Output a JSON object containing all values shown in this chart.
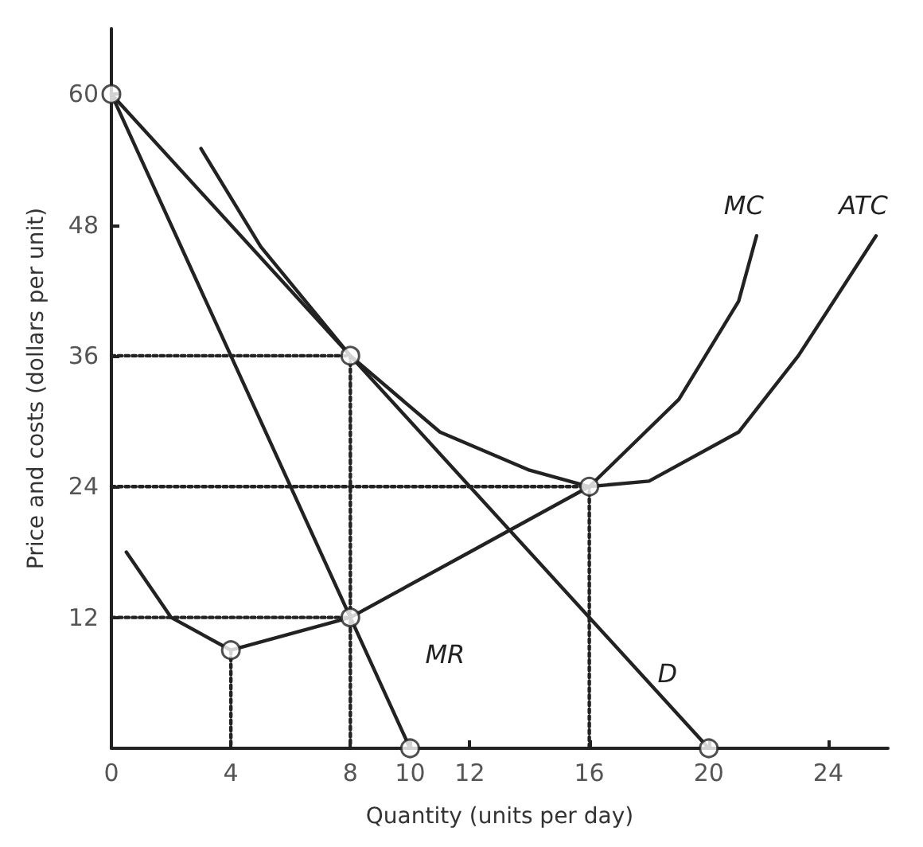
{
  "chart_data": {
    "type": "line",
    "xlabel": "Quantity (units per day)",
    "ylabel": "Price and costs (dollars per unit)",
    "xlim": [
      0,
      26
    ],
    "ylim": [
      0,
      66
    ],
    "xticks": [
      0,
      4,
      8,
      10,
      12,
      16,
      20,
      24
    ],
    "yticks": [
      {
        "value": 0,
        "label": null
      },
      12,
      24,
      36,
      48,
      60
    ],
    "grid": false,
    "marker": "none",
    "line_style": "solid",
    "series": [
      {
        "name": "D",
        "color": "#222222",
        "x": [
          0,
          20
        ],
        "values": [
          60,
          0
        ]
      },
      {
        "name": "MR",
        "color": "#222222",
        "x": [
          0,
          10
        ],
        "values": [
          60,
          0
        ]
      },
      {
        "name": "MC",
        "color": "#222222",
        "x": [
          0.5,
          2,
          4,
          8,
          12,
          16,
          19,
          21,
          21.6
        ],
        "values": [
          18,
          12,
          9,
          12,
          18,
          24,
          32,
          41,
          47
        ]
      },
      {
        "name": "ATC",
        "color": "#222222",
        "x": [
          3,
          5,
          8,
          11,
          14,
          16,
          18,
          21,
          23,
          25.6
        ],
        "values": [
          55,
          46,
          36,
          29,
          25.5,
          24,
          24.5,
          29,
          36,
          47
        ]
      },
      {
        "color": "#222222",
        "line_style": "dotted",
        "x": [
          0,
          8,
          8
        ],
        "values": [
          36,
          36,
          0
        ]
      },
      {
        "color": "#222222",
        "line_style": "dotted",
        "x": [
          0,
          16,
          16
        ],
        "values": [
          24,
          24,
          0
        ]
      },
      {
        "color": "#222222",
        "line_style": "dotted",
        "x": [
          0,
          8
        ],
        "values": [
          12,
          12
        ]
      },
      {
        "color": "#222222",
        "line_style": "dotted",
        "x": [
          4,
          4
        ],
        "values": [
          9,
          0
        ]
      },
      {
        "type": "scatter",
        "color": "#222222",
        "marker": "circle",
        "x": [
          0,
          4,
          8,
          8,
          16,
          10,
          20
        ],
        "values": [
          60,
          9,
          12,
          36,
          24,
          0,
          0
        ]
      }
    ]
  }
}
